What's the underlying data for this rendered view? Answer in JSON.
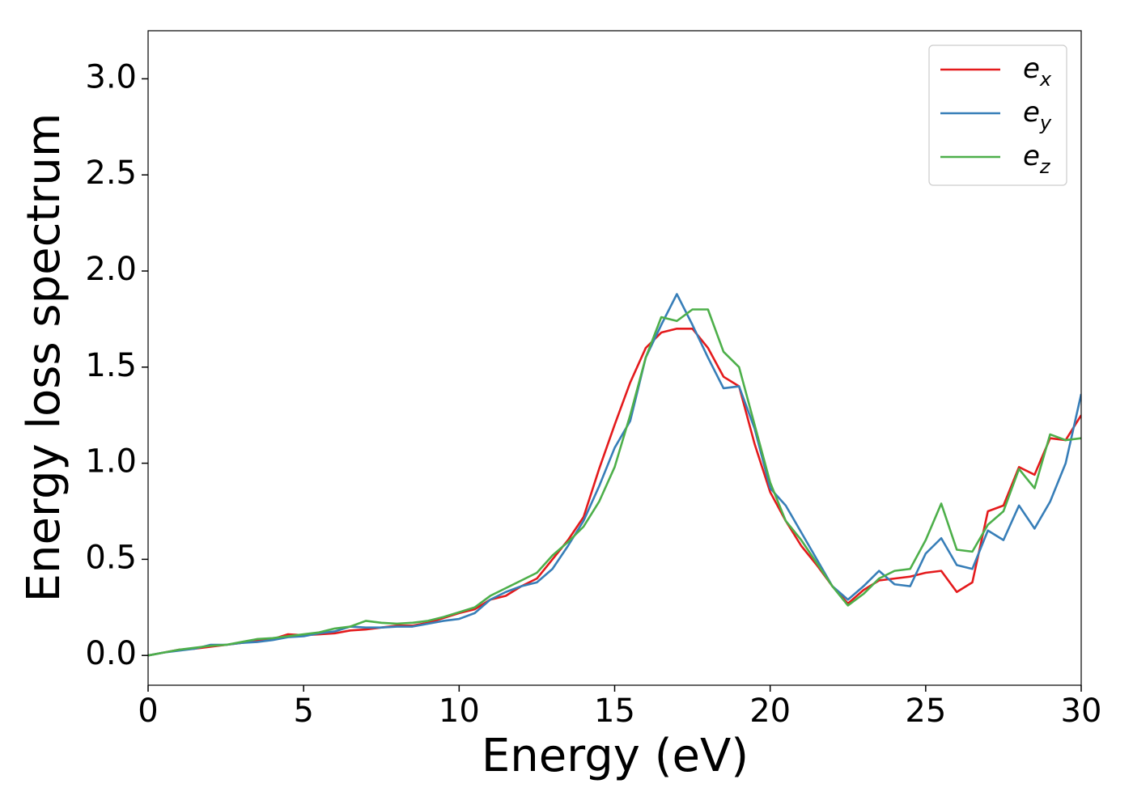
{
  "chart_data": {
    "type": "line",
    "xlabel": "Energy (eV)",
    "ylabel": "Energy loss spectrum",
    "x": [
      0,
      0.5,
      1,
      1.5,
      2,
      2.5,
      3,
      3.5,
      4,
      4.5,
      5,
      5.5,
      6,
      6.5,
      7,
      7.5,
      8,
      8.5,
      9,
      9.5,
      10,
      10.5,
      11,
      11.5,
      12,
      12.5,
      13,
      13.5,
      14,
      14.5,
      15,
      15.5,
      16,
      16.5,
      17,
      17.5,
      18,
      18.5,
      19,
      19.5,
      20,
      20.5,
      21,
      21.5,
      22,
      22.5,
      23,
      23.5,
      24,
      24.5,
      25,
      25.5,
      26,
      26.5,
      27,
      27.5,
      28,
      28.5,
      29,
      29.5,
      30
    ],
    "series": [
      {
        "name": "e_x",
        "color": "#e41a1c",
        "values": [
          0,
          0.015,
          0.03,
          0.035,
          0.045,
          0.055,
          0.065,
          0.075,
          0.085,
          0.11,
          0.105,
          0.11,
          0.115,
          0.13,
          0.135,
          0.145,
          0.155,
          0.155,
          0.17,
          0.195,
          0.22,
          0.24,
          0.29,
          0.31,
          0.36,
          0.4,
          0.5,
          0.6,
          0.72,
          0.97,
          1.2,
          1.42,
          1.6,
          1.68,
          1.7,
          1.7,
          1.6,
          1.45,
          1.4,
          1.1,
          0.85,
          0.7,
          0.57,
          0.47,
          0.36,
          0.27,
          0.34,
          0.39,
          0.4,
          0.41,
          0.43,
          0.44,
          0.33,
          0.38,
          0.75,
          0.78,
          0.98,
          0.94,
          1.13,
          1.12,
          1.25
        ]
      },
      {
        "name": "e_y",
        "color": "#377eb8",
        "values": [
          0,
          0.015,
          0.025,
          0.035,
          0.055,
          0.055,
          0.065,
          0.07,
          0.08,
          0.095,
          0.1,
          0.115,
          0.125,
          0.15,
          0.145,
          0.145,
          0.15,
          0.15,
          0.165,
          0.18,
          0.19,
          0.22,
          0.29,
          0.33,
          0.36,
          0.38,
          0.45,
          0.57,
          0.7,
          0.88,
          1.08,
          1.22,
          1.55,
          1.72,
          1.88,
          1.72,
          1.55,
          1.39,
          1.4,
          1.18,
          0.87,
          0.78,
          0.64,
          0.5,
          0.36,
          0.29,
          0.36,
          0.44,
          0.37,
          0.36,
          0.53,
          0.61,
          0.47,
          0.45,
          0.65,
          0.6,
          0.78,
          0.66,
          0.8,
          1.0,
          1.36
        ]
      },
      {
        "name": "e_z",
        "color": "#4daf4a",
        "values": [
          0,
          0.015,
          0.03,
          0.04,
          0.05,
          0.055,
          0.07,
          0.085,
          0.09,
          0.1,
          0.11,
          0.12,
          0.14,
          0.15,
          0.18,
          0.17,
          0.165,
          0.17,
          0.18,
          0.2,
          0.225,
          0.25,
          0.31,
          0.35,
          0.39,
          0.43,
          0.52,
          0.59,
          0.67,
          0.8,
          0.98,
          1.25,
          1.55,
          1.76,
          1.74,
          1.8,
          1.8,
          1.58,
          1.5,
          1.2,
          0.9,
          0.7,
          0.6,
          0.48,
          0.36,
          0.26,
          0.32,
          0.4,
          0.44,
          0.45,
          0.6,
          0.79,
          0.55,
          0.54,
          0.68,
          0.75,
          0.97,
          0.87,
          1.15,
          1.12,
          1.13
        ]
      }
    ],
    "xlim": [
      0,
      30
    ],
    "xticks": [
      0,
      5,
      10,
      15,
      20,
      25,
      30
    ],
    "ylim": [
      -0.155,
      3.25
    ],
    "yticks": [
      {
        "value": 0,
        "label": "0.0"
      },
      0.5,
      {
        "value": 1,
        "label": "1.0"
      },
      1.5,
      {
        "value": 2,
        "label": "2.0"
      },
      2.5,
      {
        "value": 3,
        "label": "3.0"
      }
    ],
    "grid": false,
    "legend": "upper right"
  }
}
